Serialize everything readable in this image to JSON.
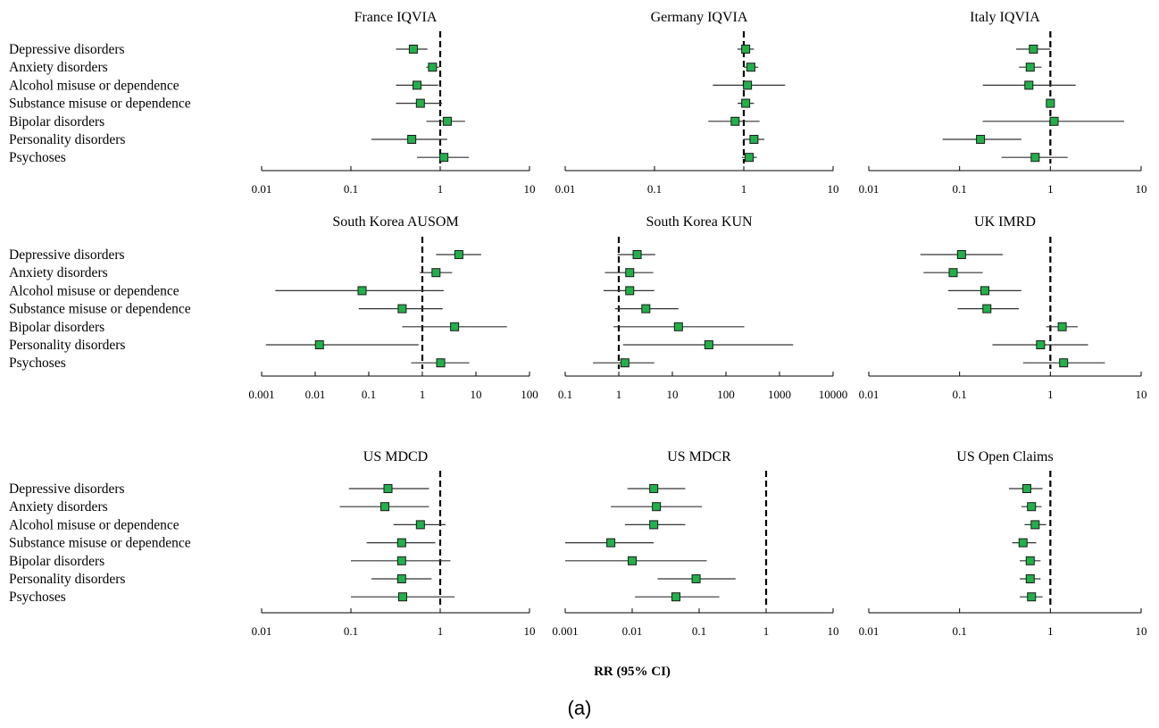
{
  "figure": {
    "xlabel": "RR (95% CI)",
    "caption": "(a)",
    "marker_color": "#22b04a",
    "marker_stroke": "#1a1a1a",
    "ci_color": "#333333",
    "axis_color": "#000000"
  },
  "chart_data": [
    {
      "type": "scatter",
      "title": "France IQVIA",
      "scale": "log",
      "xlim": [
        0.01,
        10
      ],
      "ticks": [
        "0.01",
        "0.1",
        "1",
        "10"
      ],
      "tick_values": [
        0.01,
        0.1,
        1,
        10
      ],
      "reference_line": 1,
      "show_row_labels": true,
      "rows": [
        {
          "label": "Depressive disorders",
          "est": 0.5,
          "lo": 0.32,
          "hi": 0.72
        },
        {
          "label": "Anxiety disorders",
          "est": 0.82,
          "lo": 0.7,
          "hi": 0.97
        },
        {
          "label": "Alcohol misuse or dependence",
          "est": 0.55,
          "lo": 0.32,
          "hi": 0.95
        },
        {
          "label": "Substance misuse or dependence",
          "est": 0.6,
          "lo": 0.32,
          "hi": 1.05
        },
        {
          "label": "Bipolar disorders",
          "est": 1.2,
          "lo": 0.7,
          "hi": 1.9
        },
        {
          "label": "Personality disorders",
          "est": 0.48,
          "lo": 0.17,
          "hi": 1.2
        },
        {
          "label": "Psychoses",
          "est": 1.1,
          "lo": 0.55,
          "hi": 2.1
        }
      ]
    },
    {
      "type": "scatter",
      "title": "Germany IQVIA",
      "scale": "log",
      "xlim": [
        0.01,
        10
      ],
      "ticks": [
        "0.01",
        "0.1",
        "1",
        "10"
      ],
      "tick_values": [
        0.01,
        0.1,
        1,
        10
      ],
      "reference_line": 1,
      "show_row_labels": false,
      "rows": [
        {
          "label": "Depressive disorders",
          "est": 1.05,
          "lo": 0.85,
          "hi": 1.3
        },
        {
          "label": "Anxiety disorders",
          "est": 1.2,
          "lo": 1.0,
          "hi": 1.45
        },
        {
          "label": "Alcohol misuse or dependence",
          "est": 1.1,
          "lo": 0.45,
          "hi": 2.9
        },
        {
          "label": "Substance misuse or dependence",
          "est": 1.05,
          "lo": 0.85,
          "hi": 1.3
        },
        {
          "label": "Bipolar disorders",
          "est": 0.8,
          "lo": 0.4,
          "hi": 1.5
        },
        {
          "label": "Personality disorders",
          "est": 1.3,
          "lo": 1.0,
          "hi": 1.7
        },
        {
          "label": "Psychoses",
          "est": 1.15,
          "lo": 0.95,
          "hi": 1.4
        }
      ]
    },
    {
      "type": "scatter",
      "title": "Italy IQVIA",
      "scale": "log",
      "xlim": [
        0.01,
        10
      ],
      "ticks": [
        "0.01",
        "0.1",
        "1",
        "10"
      ],
      "tick_values": [
        0.01,
        0.1,
        1,
        10
      ],
      "reference_line": 1,
      "show_row_labels": false,
      "rows": [
        {
          "label": "Depressive disorders",
          "est": 0.65,
          "lo": 0.42,
          "hi": 1.0
        },
        {
          "label": "Anxiety disorders",
          "est": 0.6,
          "lo": 0.45,
          "hi": 0.8
        },
        {
          "label": "Alcohol misuse or dependence",
          "est": 0.58,
          "lo": 0.18,
          "hi": 1.9
        },
        {
          "label": "Substance misuse or dependence",
          "est": 1.0,
          "lo": 0.97,
          "hi": 1.03
        },
        {
          "label": "Bipolar disorders",
          "est": 1.1,
          "lo": 0.18,
          "hi": 6.5
        },
        {
          "label": "Personality disorders",
          "est": 0.17,
          "lo": 0.065,
          "hi": 0.48
        },
        {
          "label": "Psychoses",
          "est": 0.68,
          "lo": 0.29,
          "hi": 1.55
        }
      ]
    },
    {
      "type": "scatter",
      "title": "South Korea AUSOM",
      "scale": "log",
      "xlim": [
        0.001,
        100
      ],
      "ticks": [
        "0.001",
        "0.01",
        "0.1",
        "1",
        "10",
        "100"
      ],
      "tick_values": [
        0.001,
        0.01,
        0.1,
        1,
        10,
        100
      ],
      "reference_line": 1,
      "show_row_labels": true,
      "rows": [
        {
          "label": "Depressive disorders",
          "est": 4.8,
          "lo": 1.8,
          "hi": 12.5
        },
        {
          "label": "Anxiety disorders",
          "est": 1.8,
          "lo": 0.9,
          "hi": 3.6
        },
        {
          "label": "Alcohol misuse or dependence",
          "est": 0.075,
          "lo": 0.0018,
          "hi": 2.5
        },
        {
          "label": "Substance misuse or dependence",
          "est": 0.42,
          "lo": 0.065,
          "hi": 2.4
        },
        {
          "label": "Bipolar disorders",
          "est": 4.0,
          "lo": 0.42,
          "hi": 38
        },
        {
          "label": "Personality disorders",
          "est": 0.012,
          "lo": 0.0012,
          "hi": 0.85
        },
        {
          "label": "Psychoses",
          "est": 2.2,
          "lo": 0.62,
          "hi": 7.5
        }
      ]
    },
    {
      "type": "scatter",
      "title": "South Korea KUN",
      "scale": "log",
      "xlim": [
        0.1,
        10000
      ],
      "ticks": [
        "0.1",
        "1",
        "10",
        "100",
        "1000",
        "10000"
      ],
      "tick_values": [
        0.1,
        1,
        10,
        100,
        1000,
        10000
      ],
      "reference_line": 1,
      "show_row_labels": false,
      "rows": [
        {
          "label": "Depressive disorders",
          "est": 2.2,
          "lo": 0.95,
          "hi": 4.8
        },
        {
          "label": "Anxiety disorders",
          "est": 1.6,
          "lo": 0.55,
          "hi": 4.4
        },
        {
          "label": "Alcohol misuse or dependence",
          "est": 1.6,
          "lo": 0.52,
          "hi": 4.6
        },
        {
          "label": "Substance misuse or dependence",
          "est": 3.2,
          "lo": 0.85,
          "hi": 13
        },
        {
          "label": "Bipolar disorders",
          "est": 13,
          "lo": 0.8,
          "hi": 220
        },
        {
          "label": "Personality disorders",
          "est": 48,
          "lo": 1.2,
          "hi": 1800
        },
        {
          "label": "Psychoses",
          "est": 1.3,
          "lo": 0.33,
          "hi": 4.6
        }
      ]
    },
    {
      "type": "scatter",
      "title": "UK IMRD",
      "scale": "log",
      "xlim": [
        0.01,
        10
      ],
      "ticks": [
        "0.01",
        "0.1",
        "1",
        "10"
      ],
      "tick_values": [
        0.01,
        0.1,
        1,
        10
      ],
      "reference_line": 1,
      "show_row_labels": false,
      "rows": [
        {
          "label": "Depressive disorders",
          "est": 0.105,
          "lo": 0.037,
          "hi": 0.3
        },
        {
          "label": "Anxiety disorders",
          "est": 0.085,
          "lo": 0.04,
          "hi": 0.18
        },
        {
          "label": "Alcohol misuse or dependence",
          "est": 0.19,
          "lo": 0.075,
          "hi": 0.48
        },
        {
          "label": "Substance misuse or dependence",
          "est": 0.2,
          "lo": 0.095,
          "hi": 0.45
        },
        {
          "label": "Bipolar disorders",
          "est": 1.35,
          "lo": 0.9,
          "hi": 2.0
        },
        {
          "label": "Personality disorders",
          "est": 0.78,
          "lo": 0.23,
          "hi": 2.6
        },
        {
          "label": "Psychoses",
          "est": 1.4,
          "lo": 0.5,
          "hi": 4.0
        }
      ]
    },
    {
      "type": "scatter",
      "title": "US MDCD",
      "scale": "log",
      "xlim": [
        0.01,
        10
      ],
      "ticks": [
        "0.01",
        "0.1",
        "1",
        "10"
      ],
      "tick_values": [
        0.01,
        0.1,
        1,
        10
      ],
      "reference_line": 1,
      "show_row_labels": true,
      "rows": [
        {
          "label": "Depressive disorders",
          "est": 0.26,
          "lo": 0.095,
          "hi": 0.75
        },
        {
          "label": "Anxiety disorders",
          "est": 0.24,
          "lo": 0.075,
          "hi": 0.75
        },
        {
          "label": "Alcohol misuse or dependence",
          "est": 0.6,
          "lo": 0.3,
          "hi": 1.15
        },
        {
          "label": "Substance misuse or dependence",
          "est": 0.37,
          "lo": 0.15,
          "hi": 0.88
        },
        {
          "label": "Bipolar disorders",
          "est": 0.37,
          "lo": 0.1,
          "hi": 1.3
        },
        {
          "label": "Personality disorders",
          "est": 0.37,
          "lo": 0.17,
          "hi": 0.8
        },
        {
          "label": "Psychoses",
          "est": 0.38,
          "lo": 0.1,
          "hi": 1.45
        }
      ]
    },
    {
      "type": "scatter",
      "title": "US MDCR",
      "scale": "log",
      "xlim": [
        0.001,
        10
      ],
      "ticks": [
        "0.001",
        "0.01",
        "0.1",
        "1",
        "10"
      ],
      "tick_values": [
        0.001,
        0.01,
        0.1,
        1,
        10
      ],
      "reference_line": 1,
      "show_row_labels": false,
      "rows": [
        {
          "label": "Depressive disorders",
          "est": 0.021,
          "lo": 0.0085,
          "hi": 0.062
        },
        {
          "label": "Anxiety disorders",
          "est": 0.023,
          "lo": 0.0048,
          "hi": 0.11
        },
        {
          "label": "Alcohol misuse or dependence",
          "est": 0.021,
          "lo": 0.0078,
          "hi": 0.062
        },
        {
          "label": "Substance misuse or dependence",
          "est": 0.0048,
          "lo": 0.001,
          "hi": 0.021
        },
        {
          "label": "Bipolar disorders",
          "est": 0.01,
          "lo": 0.001,
          "hi": 0.13
        },
        {
          "label": "Personality disorders",
          "est": 0.09,
          "lo": 0.024,
          "hi": 0.35
        },
        {
          "label": "Psychoses",
          "est": 0.045,
          "lo": 0.011,
          "hi": 0.2
        }
      ]
    },
    {
      "type": "scatter",
      "title": "US Open Claims",
      "scale": "log",
      "xlim": [
        0.01,
        10
      ],
      "ticks": [
        "0.01",
        "0.1",
        "1",
        "10"
      ],
      "tick_values": [
        0.01,
        0.1,
        1,
        10
      ],
      "reference_line": 1,
      "show_row_labels": false,
      "rows": [
        {
          "label": "Depressive disorders",
          "est": 0.55,
          "lo": 0.35,
          "hi": 0.82
        },
        {
          "label": "Anxiety disorders",
          "est": 0.62,
          "lo": 0.48,
          "hi": 0.8
        },
        {
          "label": "Alcohol misuse or dependence",
          "est": 0.68,
          "lo": 0.52,
          "hi": 0.9
        },
        {
          "label": "Substance misuse or dependence",
          "est": 0.5,
          "lo": 0.38,
          "hi": 0.7
        },
        {
          "label": "Bipolar disorders",
          "est": 0.6,
          "lo": 0.46,
          "hi": 0.78
        },
        {
          "label": "Personality disorders",
          "est": 0.6,
          "lo": 0.46,
          "hi": 0.78
        },
        {
          "label": "Psychoses",
          "est": 0.62,
          "lo": 0.46,
          "hi": 0.82
        }
      ]
    }
  ]
}
